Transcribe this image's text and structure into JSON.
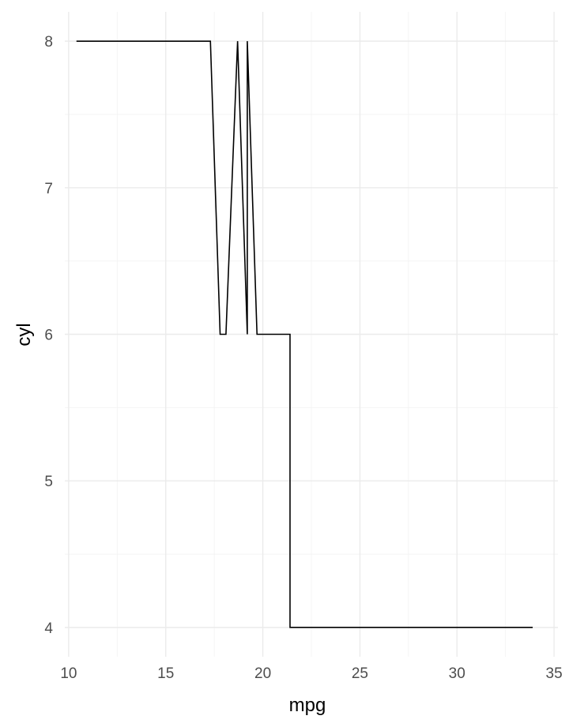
{
  "chart_data": {
    "type": "line",
    "xlabel": "mpg",
    "ylabel": "cyl",
    "xlim": [
      9.8,
      35.2
    ],
    "ylim": [
      3.8,
      8.2
    ],
    "x_ticks": [
      10,
      15,
      20,
      25,
      30,
      35
    ],
    "y_ticks": [
      4,
      5,
      6,
      7,
      8
    ],
    "grid": true,
    "legend": "none",
    "series": [
      {
        "color": "#000000",
        "points": [
          [
            10.4,
            8
          ],
          [
            17.3,
            8
          ],
          [
            17.8,
            6
          ],
          [
            18.1,
            6
          ],
          [
            18.7,
            8
          ],
          [
            19.2,
            6
          ],
          [
            19.2,
            8
          ],
          [
            19.7,
            6
          ],
          [
            21.4,
            6
          ],
          [
            21.4,
            4
          ],
          [
            33.9,
            4
          ]
        ]
      }
    ]
  }
}
